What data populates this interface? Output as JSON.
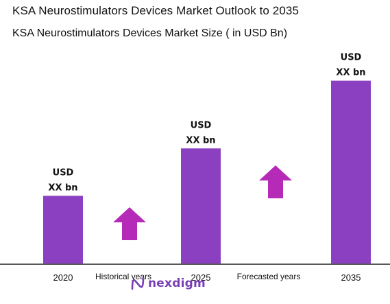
{
  "title": "KSA Neurostimulators Devices Market Outlook to 2035",
  "subtitle": "KSA Neurostimulators Devices Market Size  ( in USD Bn)",
  "colors": {
    "bar": "#8a40c0",
    "arrow": "#b52bb8",
    "axis": "#222222",
    "logo": "#7a3fb5"
  },
  "chart_data": {
    "type": "bar",
    "title": "KSA Neurostimulators Devices Market Size  ( in USD Bn)",
    "categories": [
      "2020",
      "2025",
      "2035"
    ],
    "values": [
      1,
      1.7,
      2.7
    ],
    "value_labels": [
      [
        "USD",
        "XX bn"
      ],
      [
        "USD",
        "XX bn"
      ],
      [
        "USD",
        "XX bn"
      ]
    ],
    "period_labels": [
      "Historical years",
      "Forecasted years"
    ],
    "ylim": [
      0,
      3.0
    ],
    "grid": false,
    "legend": "none"
  },
  "logo": {
    "text": "nexdigm",
    "icon": "nexdigm-logo-icon"
  }
}
